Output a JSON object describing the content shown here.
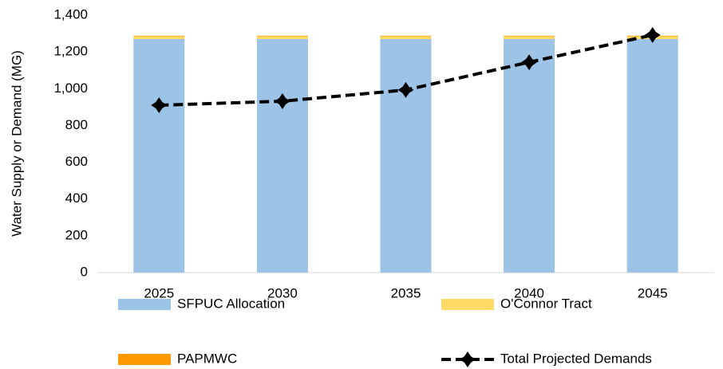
{
  "chart_data": {
    "type": "bar",
    "y_label": "Water Supply or Demand (MG)",
    "categories": [
      "2025",
      "2030",
      "2035",
      "2040",
      "2045"
    ],
    "series": [
      {
        "name": "SFPUC Allocation",
        "color": "#9dc3e6",
        "type": "bar",
        "values": [
          1270,
          1270,
          1270,
          1270,
          1270
        ]
      },
      {
        "name": "O'Connor Tract",
        "color": "#ffd966",
        "type": "bar",
        "values": [
          15,
          15,
          15,
          15,
          15
        ]
      },
      {
        "name": "PAPMWC",
        "color": "#ff9900",
        "type": "bar",
        "values": [
          3,
          3,
          3,
          3,
          3
        ]
      },
      {
        "name": "Total Projected Demands",
        "color": "#000000",
        "type": "line",
        "values": [
          910,
          932,
          993,
          1144,
          1292
        ]
      }
    ],
    "ylim": [
      0,
      1400
    ],
    "yticks": [
      0,
      200,
      400,
      600,
      800,
      {
        "value": 1000,
        "label": "1,000"
      },
      {
        "value": 1200,
        "label": "1,200"
      },
      {
        "value": 1400,
        "label": "1,400"
      }
    ],
    "grid": false
  }
}
